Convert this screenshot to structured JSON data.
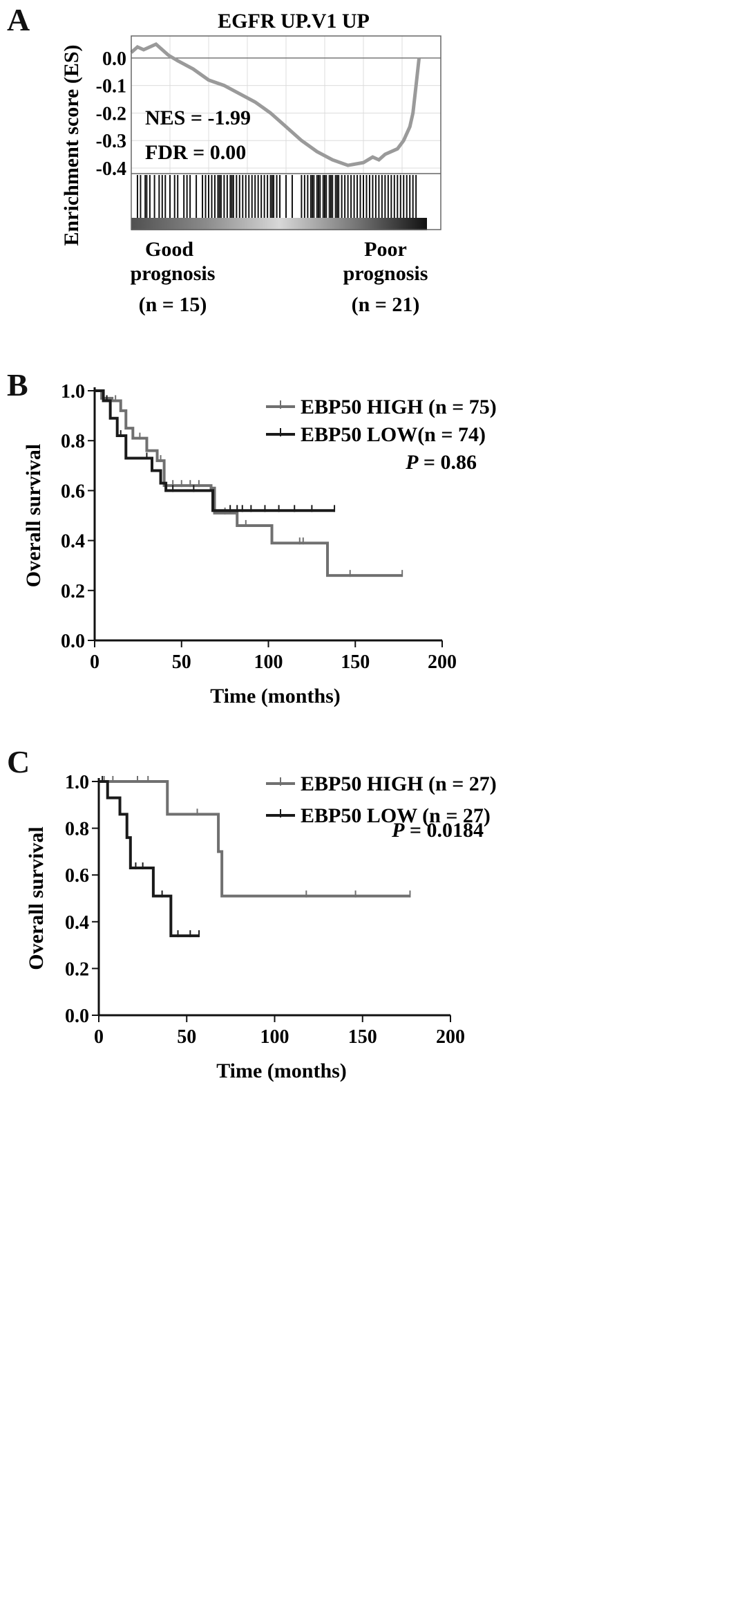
{
  "panels": {
    "a": {
      "letter": "A"
    },
    "b": {
      "letter": "B"
    },
    "c": {
      "letter": "C"
    }
  },
  "chart_data": [
    {
      "type": "line",
      "panel": "A",
      "title": "EGFR  UP.V1  UP",
      "ylabel": "Enrichment score (ES)",
      "ylim": [
        -0.4,
        0.05
      ],
      "yticks": [
        "0.0",
        "-0.1",
        "-0.2",
        "-0.3",
        "-0.4"
      ],
      "grid": true,
      "stats": {
        "nes": "NES = -1.99",
        "fdr": "FDR = 0.00"
      },
      "group_labels": {
        "left": [
          "Good",
          "prognosis",
          "(n = 15)"
        ],
        "right": [
          "Poor",
          "prognosis",
          "(n = 21)"
        ]
      },
      "x": [
        0,
        2,
        4,
        6,
        8,
        10,
        12,
        15,
        20,
        25,
        30,
        35,
        40,
        45,
        50,
        55,
        60,
        65,
        70,
        75,
        78,
        80,
        82,
        84,
        86,
        88,
        90,
        91,
        92,
        93
      ],
      "values": [
        0.02,
        0.04,
        0.03,
        0.04,
        0.05,
        0.03,
        0.01,
        -0.01,
        -0.04,
        -0.08,
        -0.1,
        -0.13,
        -0.16,
        -0.2,
        -0.25,
        -0.3,
        -0.34,
        -0.37,
        -0.39,
        -0.38,
        -0.36,
        -0.37,
        -0.35,
        -0.34,
        -0.33,
        -0.3,
        -0.25,
        -0.2,
        -0.1,
        0.0
      ],
      "hit_positions": [
        2,
        3,
        4.5,
        5,
        6,
        7.5,
        9,
        10,
        11,
        12.5,
        14,
        15,
        17,
        18,
        19,
        21,
        23,
        24,
        25,
        26,
        27,
        28,
        28.5,
        29,
        30,
        31,
        32,
        32.5,
        33,
        34,
        35,
        36,
        37,
        38,
        39,
        40,
        41,
        42,
        43,
        44,
        45,
        45.5,
        46,
        47,
        48,
        50,
        52,
        55,
        56,
        57,
        58,
        58.5,
        59,
        60,
        60.5,
        61,
        62,
        62.5,
        63,
        64,
        64.5,
        65,
        66,
        66.5,
        67,
        68,
        69,
        70,
        71,
        72,
        73,
        74,
        75,
        76,
        77,
        78,
        79,
        80,
        81,
        82,
        83,
        84,
        85,
        86,
        87,
        88,
        89,
        90,
        91,
        92
      ]
    },
    {
      "type": "line",
      "panel": "B",
      "xlabel": "Time (months)",
      "ylabel": "Overall survival",
      "xlim": [
        0,
        200
      ],
      "ylim": [
        0.0,
        1.0
      ],
      "xticks": [
        0,
        50,
        100,
        150,
        200
      ],
      "yticks": [
        "0.0",
        "0.2",
        "0.4",
        "0.6",
        "0.8",
        "1.0"
      ],
      "annotation": {
        "label": "P",
        "value": " = 0.86"
      },
      "series": [
        {
          "name": "EBP50 HIGH (n = 75)",
          "color": "#707070",
          "steps": [
            [
              0,
              1.0
            ],
            [
              4,
              0.97
            ],
            [
              10,
              0.96
            ],
            [
              15,
              0.92
            ],
            [
              18,
              0.85
            ],
            [
              22,
              0.81
            ],
            [
              30,
              0.76
            ],
            [
              36,
              0.72
            ],
            [
              40,
              0.62
            ],
            [
              67,
              0.61
            ],
            [
              69,
              0.51
            ],
            [
              82,
              0.46
            ],
            [
              102,
              0.39
            ],
            [
              134,
              0.26
            ],
            [
              177,
              0.26
            ]
          ],
          "censored": [
            [
              5,
              0.97
            ],
            [
              12,
              0.96
            ],
            [
              26,
              0.81
            ],
            [
              38,
              0.72
            ],
            [
              45,
              0.62
            ],
            [
              50,
              0.62
            ],
            [
              55,
              0.62
            ],
            [
              60,
              0.62
            ],
            [
              75,
              0.51
            ],
            [
              87,
              0.46
            ],
            [
              118,
              0.39
            ],
            [
              120,
              0.39
            ],
            [
              147,
              0.26
            ],
            [
              177,
              0.26
            ]
          ]
        },
        {
          "name": "EBP50 LOW(n = 74)",
          "color": "#1a1a1a",
          "steps": [
            [
              0,
              1.0
            ],
            [
              5,
              0.96
            ],
            [
              9,
              0.89
            ],
            [
              13,
              0.82
            ],
            [
              18,
              0.73
            ],
            [
              28,
              0.73
            ],
            [
              33,
              0.68
            ],
            [
              38,
              0.63
            ],
            [
              41,
              0.6
            ],
            [
              68,
              0.52
            ],
            [
              138,
              0.52
            ]
          ],
          "censored": [
            [
              7,
              0.96
            ],
            [
              15,
              0.82
            ],
            [
              30,
              0.73
            ],
            [
              45,
              0.6
            ],
            [
              57,
              0.6
            ],
            [
              78,
              0.52
            ],
            [
              82,
              0.52
            ],
            [
              85,
              0.52
            ],
            [
              90,
              0.52
            ],
            [
              98,
              0.52
            ],
            [
              106,
              0.52
            ],
            [
              115,
              0.52
            ],
            [
              125,
              0.52
            ],
            [
              138,
              0.52
            ]
          ]
        }
      ]
    },
    {
      "type": "line",
      "panel": "C",
      "xlabel": "Time (months)",
      "ylabel": "Overall survival",
      "xlim": [
        0,
        200
      ],
      "ylim": [
        0.0,
        1.0
      ],
      "xticks": [
        0,
        50,
        100,
        150,
        200
      ],
      "yticks": [
        "0.0",
        "0.2",
        "0.4",
        "0.6",
        "0.8",
        "1.0"
      ],
      "annotation": {
        "label": "P",
        "value": " = 0.0184"
      },
      "series": [
        {
          "name": "EBP50 HIGH (n = 27)",
          "color": "#707070",
          "steps": [
            [
              0,
              1.0
            ],
            [
              39,
              0.86
            ],
            [
              67,
              0.86
            ],
            [
              68,
              0.7
            ],
            [
              70,
              0.51
            ],
            [
              177,
              0.51
            ]
          ],
          "censored": [
            [
              3,
              1.0
            ],
            [
              8,
              1.0
            ],
            [
              22,
              1.0
            ],
            [
              28,
              1.0
            ],
            [
              56,
              0.86
            ],
            [
              118,
              0.51
            ],
            [
              146,
              0.51
            ],
            [
              177,
              0.51
            ]
          ]
        },
        {
          "name": "EBP50 LOW (n = 27)",
          "color": "#1a1a1a",
          "steps": [
            [
              0,
              1.0
            ],
            [
              5,
              0.93
            ],
            [
              12,
              0.86
            ],
            [
              16,
              0.76
            ],
            [
              18,
              0.63
            ],
            [
              31,
              0.51
            ],
            [
              41,
              0.34
            ],
            [
              57,
              0.34
            ]
          ],
          "censored": [
            [
              2,
              1.0
            ],
            [
              21,
              0.63
            ],
            [
              25,
              0.63
            ],
            [
              36,
              0.51
            ],
            [
              45,
              0.34
            ],
            [
              52,
              0.34
            ],
            [
              57,
              0.34
            ]
          ]
        }
      ]
    }
  ]
}
